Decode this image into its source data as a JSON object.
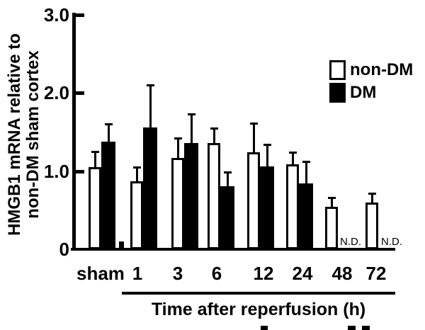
{
  "chart_data": {
    "type": "bar",
    "title": "",
    "ylabel_lines": [
      "HMGB1 mRNA relative to",
      "non-DM sham cortex"
    ],
    "xlabel": "Time after reperfusion (h)",
    "ylim": [
      0,
      3.0
    ],
    "grid": false,
    "y_ticks": [
      {
        "value": 3.0,
        "label": "3.0",
        "has_mark": true
      },
      {
        "value": 2.0,
        "label": "2.0",
        "has_mark": true
      },
      {
        "value": 1.0,
        "label": "1.0",
        "has_mark": true
      },
      {
        "value": 0,
        "label": "0",
        "has_mark": false
      }
    ],
    "categories": [
      "sham",
      "1",
      "3",
      "6",
      "12",
      "24",
      "48",
      "72"
    ],
    "series": [
      {
        "name": "non-DM",
        "fill": "#ffffff",
        "values": [
          1.05,
          0.87,
          1.17,
          1.36,
          1.24,
          1.09,
          0.54,
          0.6
        ],
        "errors": [
          0.2,
          0.18,
          0.25,
          0.19,
          0.37,
          0.15,
          0.12,
          0.12
        ]
      },
      {
        "name": "DM",
        "fill": "#000000",
        "values": [
          1.38,
          1.56,
          1.36,
          0.81,
          1.06,
          0.84,
          null,
          null
        ],
        "errors": [
          0.22,
          0.54,
          0.37,
          0.18,
          0.28,
          0.28,
          null,
          null
        ]
      }
    ],
    "not_detected_label": "N.D.",
    "not_detected": [
      {
        "series": "DM",
        "category": "48"
      },
      {
        "series": "DM",
        "category": "72"
      }
    ],
    "artifact_bar": {
      "value": 0.1
    },
    "legend": {
      "position": "top-right",
      "entries": [
        {
          "label": "non-DM",
          "fill": "#ffffff"
        },
        {
          "label": "DM",
          "fill": "#000000"
        }
      ]
    },
    "colors": {
      "ink": "#000000",
      "background": "#ffffff"
    }
  }
}
